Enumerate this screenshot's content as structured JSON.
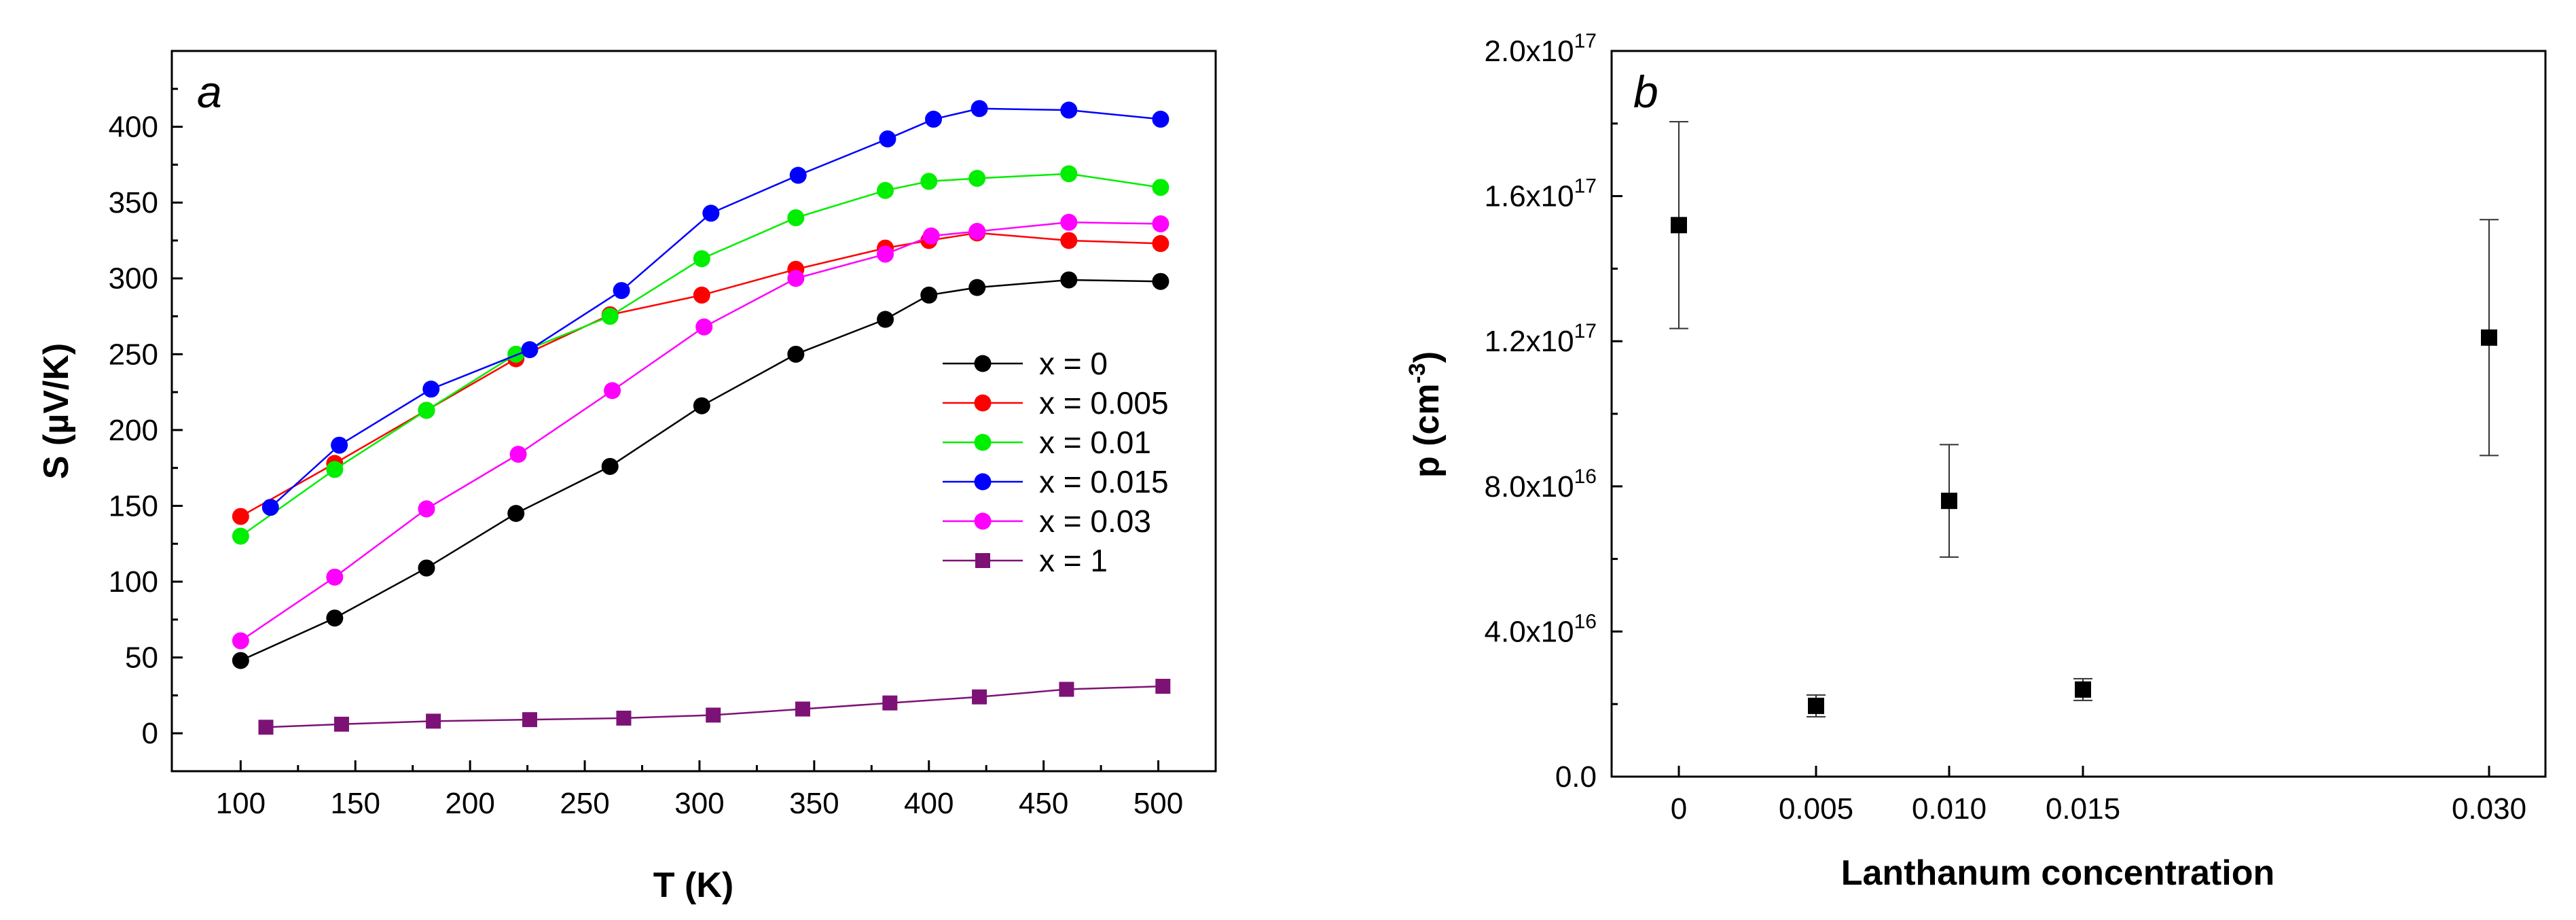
{
  "chart_data": [
    {
      "type": "line",
      "panel_label": "a",
      "title": "",
      "xlabel": "T (K)",
      "ylabel": "S (µV/K)",
      "xlim": [
        70,
        525
      ],
      "ylim": [
        -25,
        450
      ],
      "x_ticks": [
        "100",
        "150",
        "200",
        "250",
        "300",
        "350",
        "400",
        "450",
        "500"
      ],
      "y_ticks": [
        "0",
        "50",
        "100",
        "150",
        "200",
        "250",
        "300",
        "350",
        "400"
      ],
      "legend": "center-right",
      "series": [
        {
          "name": "x = 0",
          "color": "#000000",
          "marker": "circle",
          "x": [
            100,
            141,
            181,
            220,
            261,
            301,
            342,
            381,
            400,
            421,
            461,
            501
          ],
          "y": [
            48,
            76,
            109,
            145,
            176,
            216,
            250,
            273,
            289,
            294,
            299,
            298
          ]
        },
        {
          "name": "x = 0.005",
          "color": "#ff0000",
          "marker": "circle",
          "x": [
            100,
            141,
            181,
            220,
            261,
            301,
            342,
            381,
            400,
            421,
            461,
            501
          ],
          "y": [
            143,
            178,
            213,
            247,
            276,
            289,
            306,
            320,
            325,
            330,
            325,
            323
          ]
        },
        {
          "name": "x = 0.01",
          "color": "#00ee00",
          "marker": "circle",
          "x": [
            100,
            141,
            181,
            220,
            261,
            301,
            342,
            381,
            400,
            421,
            461,
            501
          ],
          "y": [
            130,
            174,
            213,
            250,
            275,
            313,
            340,
            358,
            364,
            366,
            369,
            360
          ]
        },
        {
          "name": "x = 0.015",
          "color": "#0000ff",
          "marker": "circle",
          "x": [
            113,
            143,
            183,
            226,
            266,
            305,
            343,
            382,
            402,
            422,
            461,
            501
          ],
          "y": [
            149,
            190,
            227,
            253,
            292,
            343,
            368,
            392,
            405,
            412,
            411,
            405
          ]
        },
        {
          "name": "x = 0.03",
          "color": "#ff00ff",
          "marker": "circle",
          "x": [
            100,
            141,
            181,
            221,
            262,
            302,
            342,
            381,
            401,
            421,
            461,
            501
          ],
          "y": [
            61,
            103,
            148,
            184,
            226,
            268,
            300,
            316,
            328,
            331,
            337,
            336
          ]
        },
        {
          "name": "x = 1",
          "color": "#7d1276",
          "marker": "square",
          "x": [
            111,
            144,
            184,
            226,
            267,
            306,
            345,
            383,
            422,
            460,
            502
          ],
          "y": [
            4,
            6,
            8,
            9,
            10,
            12,
            16,
            20,
            24,
            29,
            31
          ]
        }
      ]
    },
    {
      "type": "scatter",
      "panel_label": "b",
      "title": "",
      "xlabel": "Lanthanum concentration",
      "ylabel": "p (cm^-3)",
      "ylim": [
        0,
        2e+17
      ],
      "x_ticks": [
        "0",
        "0.005",
        "0.010",
        "0.015",
        "0.030"
      ],
      "y_ticks": [
        "0.0",
        "4.0x10^16",
        "8.0x10^16",
        "1.2x10^17",
        "1.6x10^17",
        "2.0x10^17"
      ],
      "y_tick_text": [
        {
          "mantissa": "0.0",
          "exp": ""
        },
        {
          "mantissa": "4.0x10",
          "exp": "16"
        },
        {
          "mantissa": "8.0x10",
          "exp": "16"
        },
        {
          "mantissa": "1.2x10",
          "exp": "17"
        },
        {
          "mantissa": "1.6x10",
          "exp": "17"
        },
        {
          "mantissa": "2.0x10",
          "exp": "17"
        }
      ],
      "ylabel_parts": {
        "base": "p (cm",
        "exp": "-3",
        "tail": ")"
      },
      "series": [
        {
          "name": "p",
          "color": "#000000",
          "marker": "square",
          "x": [
            0,
            0.005,
            0.01,
            0.015,
            0.03
          ],
          "y": [
            1.52e+17,
            1.95e+16,
            7.6e+16,
            2.4e+16,
            1.21e+17
          ],
          "yerr": [
            2.85e+16,
            3000000000000000.0,
            1.55e+16,
            3000000000000000.0,
            3.25e+16
          ]
        }
      ]
    }
  ]
}
